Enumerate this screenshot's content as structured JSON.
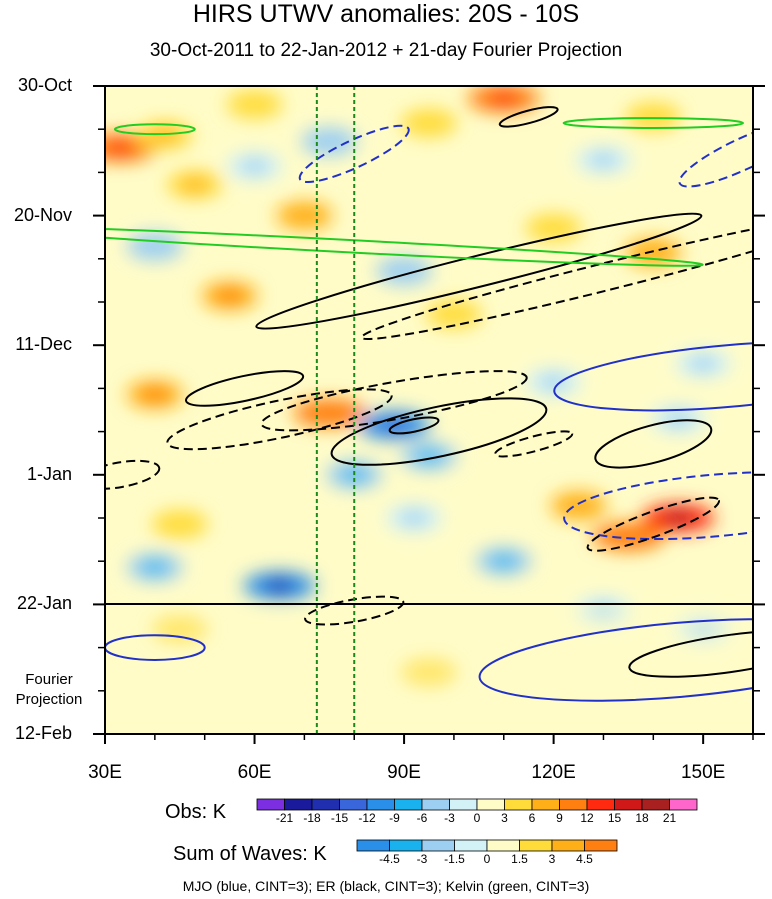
{
  "title": "HIRS UTWV anomalies: 20S - 10S",
  "subtitle": "30-Oct-2011 to 22-Jan-2012 + 21-day Fourier Projection",
  "projection_label_line1": "Fourier",
  "projection_label_line2": "Projection",
  "footer": "MJO (blue, CINT=3); ER (black, CINT=3); Kelvin (green, CINT=3)",
  "colors": {
    "mjo": "#2030c8",
    "er": "#000000",
    "kelvin": "#22cc22",
    "reference_lines": "#1a8a1a"
  },
  "chart_data": {
    "type": "heatmap",
    "title": "HIRS UTWV anomalies: 20S - 10S",
    "subtitle": "30-Oct-2011 to 22-Jan-2012 + 21-day Fourier Projection",
    "x_axis": {
      "ticks": [
        "30E",
        "60E",
        "90E",
        "120E",
        "150E"
      ],
      "tick_values": [
        30,
        60,
        90,
        120,
        150
      ],
      "range": [
        30,
        160
      ]
    },
    "y_axis": {
      "ticks": [
        "30-Oct",
        "20-Nov",
        "11-Dec",
        "1-Jan",
        "22-Jan",
        "12-Feb"
      ],
      "tick_days": [
        0,
        21,
        42,
        63,
        84,
        105
      ],
      "range_days": [
        0,
        105
      ]
    },
    "observation_end_label": "22-Jan",
    "reference_lines_lon": [
      72.5,
      80
    ],
    "obs_colorbar": {
      "label": "Obs: K",
      "levels": [
        "-21",
        "-18",
        "-15",
        "-12",
        "-9",
        "-6",
        "-3",
        "0",
        "3",
        "6",
        "9",
        "12",
        "15",
        "18",
        "21"
      ],
      "colors": [
        "#7b2fe0",
        "#1a1a9c",
        "#1f2fb0",
        "#3a66db",
        "#2a8fe8",
        "#19b2ee",
        "#9ccff2",
        "#d2f2f8",
        "#fffcc8",
        "#ffdc3a",
        "#ffb019",
        "#ff7f10",
        "#ff2a10",
        "#d01818",
        "#a82020",
        "#ff66cc"
      ]
    },
    "waves_colorbar": {
      "label": "Sum of Waves: K",
      "levels": [
        "-4.5",
        "-3",
        "-1.5",
        "0",
        "1.5",
        "3",
        "4.5"
      ],
      "colors": [
        "#2a8fe8",
        "#19b2ee",
        "#9ccff2",
        "#d2f2f8",
        "#fffcc8",
        "#ffdc3a",
        "#ffb019",
        "#ff7f10"
      ]
    },
    "anomaly_features": [
      {
        "lon": 33,
        "day": 10,
        "value": 10
      },
      {
        "lon": 42,
        "day": 8,
        "value": 5
      },
      {
        "lon": 60,
        "day": 3,
        "value": 4
      },
      {
        "lon": 110,
        "day": 2,
        "value": 10
      },
      {
        "lon": 95,
        "day": 6,
        "value": 4
      },
      {
        "lon": 140,
        "day": 5,
        "value": 3
      },
      {
        "lon": 75,
        "day": 9,
        "value": -4
      },
      {
        "lon": 60,
        "day": 13,
        "value": -3
      },
      {
        "lon": 130,
        "day": 12,
        "value": -3
      },
      {
        "lon": 48,
        "day": 16,
        "value": 5
      },
      {
        "lon": 70,
        "day": 21,
        "value": 6
      },
      {
        "lon": 120,
        "day": 23,
        "value": 4
      },
      {
        "lon": 140,
        "day": 27,
        "value": 6
      },
      {
        "lon": 55,
        "day": 34,
        "value": 7
      },
      {
        "lon": 90,
        "day": 30,
        "value": -4
      },
      {
        "lon": 40,
        "day": 26,
        "value": -4
      },
      {
        "lon": 100,
        "day": 37,
        "value": 4
      },
      {
        "lon": 40,
        "day": 50,
        "value": 8
      },
      {
        "lon": 75,
        "day": 53,
        "value": 9
      },
      {
        "lon": 88,
        "day": 55,
        "value": -10
      },
      {
        "lon": 95,
        "day": 60,
        "value": -6
      },
      {
        "lon": 80,
        "day": 63,
        "value": -6
      },
      {
        "lon": 120,
        "day": 48,
        "value": -3
      },
      {
        "lon": 145,
        "day": 54,
        "value": -3
      },
      {
        "lon": 150,
        "day": 45,
        "value": -3
      },
      {
        "lon": 145,
        "day": 70,
        "value": 14
      },
      {
        "lon": 125,
        "day": 68,
        "value": 6
      },
      {
        "lon": 135,
        "day": 73,
        "value": 9
      },
      {
        "lon": 45,
        "day": 71,
        "value": 4
      },
      {
        "lon": 65,
        "day": 81,
        "value": -12
      },
      {
        "lon": 40,
        "day": 78,
        "value": -6
      },
      {
        "lon": 110,
        "day": 77,
        "value": -5
      },
      {
        "lon": 92,
        "day": 70,
        "value": -3
      },
      {
        "lon": 130,
        "day": 85,
        "value": -3
      },
      {
        "lon": 45,
        "day": 88,
        "value": 3
      },
      {
        "lon": 95,
        "day": 95,
        "value": 3
      },
      {
        "lon": 115,
        "day": 98,
        "value": 2
      },
      {
        "lon": 150,
        "day": 88,
        "value": -3
      }
    ],
    "wave_contours": [
      {
        "wave": "MJO",
        "style": "dashed",
        "lon": 80,
        "day": 11,
        "rx": 12,
        "ry": 2.2,
        "tilt": 25
      },
      {
        "wave": "MJO",
        "style": "dashed",
        "lon": 158,
        "day": 11,
        "rx": 14,
        "ry": 2.5,
        "tilt": 25
      },
      {
        "wave": "MJO",
        "style": "solid",
        "lon": 155,
        "day": 47,
        "rx": 35,
        "ry": 5,
        "tilt": 5
      },
      {
        "wave": "MJO",
        "style": "dashed",
        "lon": 152,
        "day": 68,
        "rx": 30,
        "ry": 5,
        "tilt": 5
      },
      {
        "wave": "MJO",
        "style": "solid",
        "lon": 145,
        "day": 93,
        "rx": 40,
        "ry": 6,
        "tilt": 5
      },
      {
        "wave": "MJO",
        "style": "solid",
        "lon": 40,
        "day": 91,
        "rx": 10,
        "ry": 2,
        "tilt": 0
      },
      {
        "wave": "ER",
        "style": "solid",
        "lon": 105,
        "day": 30,
        "rx": 46,
        "ry": 2.5,
        "tilt": 14
      },
      {
        "wave": "ER",
        "style": "dashed",
        "lon": 130,
        "day": 31,
        "rx": 50,
        "ry": 2.2,
        "tilt": 14
      },
      {
        "wave": "ER",
        "style": "solid",
        "lon": 58,
        "day": 49,
        "rx": 12,
        "ry": 2,
        "tilt": 12
      },
      {
        "wave": "ER",
        "style": "dashed",
        "lon": 65,
        "day": 54,
        "rx": 23,
        "ry": 3,
        "tilt": 12
      },
      {
        "wave": "ER",
        "style": "dashed",
        "lon": 88,
        "day": 51,
        "rx": 27,
        "ry": 3,
        "tilt": 10
      },
      {
        "wave": "ER",
        "style": "solid",
        "lon": 97,
        "day": 56,
        "rx": 22,
        "ry": 4,
        "tilt": 12
      },
      {
        "wave": "ER",
        "style": "solid",
        "lon": 92,
        "day": 55,
        "rx": 5,
        "ry": 1,
        "tilt": 12
      },
      {
        "wave": "ER",
        "style": "dashed",
        "lon": 116,
        "day": 58,
        "rx": 8,
        "ry": 1.2,
        "tilt": 15
      },
      {
        "wave": "ER",
        "style": "solid",
        "lon": 140,
        "day": 58,
        "rx": 12,
        "ry": 3,
        "tilt": 15
      },
      {
        "wave": "ER",
        "style": "dashed",
        "lon": 140,
        "day": 71,
        "rx": 14,
        "ry": 2,
        "tilt": 20
      },
      {
        "wave": "ER",
        "style": "dashed",
        "lon": 33,
        "day": 63,
        "rx": 8,
        "ry": 2,
        "tilt": 10
      },
      {
        "wave": "ER",
        "style": "solid",
        "lon": 155,
        "day": 92,
        "rx": 20,
        "ry": 3,
        "tilt": 8
      },
      {
        "wave": "ER",
        "style": "solid",
        "lon": 115,
        "day": 5,
        "rx": 6,
        "ry": 1,
        "tilt": 15
      },
      {
        "wave": "ER",
        "style": "dashed",
        "lon": 80,
        "day": 85,
        "rx": 10,
        "ry": 1.8,
        "tilt": 10
      },
      {
        "wave": "Kelvin",
        "style": "solid",
        "lon": 80,
        "day": 26,
        "rx": 70,
        "ry": 1,
        "tilt": -3
      },
      {
        "wave": "Kelvin",
        "style": "solid",
        "lon": 40,
        "day": 7,
        "rx": 8,
        "ry": 0.8,
        "tilt": 0
      },
      {
        "wave": "Kelvin",
        "style": "solid",
        "lon": 140,
        "day": 6,
        "rx": 18,
        "ry": 0.8,
        "tilt": 0
      }
    ]
  }
}
